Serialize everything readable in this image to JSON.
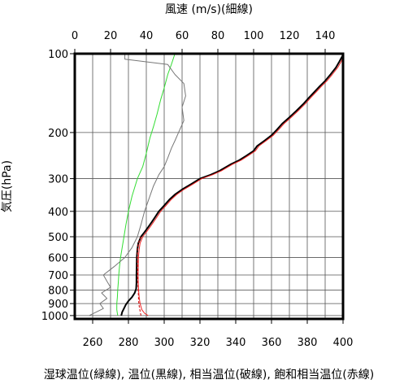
{
  "chart_data": {
    "type": "line",
    "title": "",
    "top_axis_label": "風速 (m/s)(細線)",
    "left_axis_label": "気圧(hPa)",
    "bottom_axis_label": "湿球温位(緑線), 温位(黒線), 相当温位(破線), 飽和相当温位(赤線)",
    "x_bottom": {
      "min": 250,
      "max": 400,
      "ticks": [
        260,
        280,
        300,
        320,
        340,
        360,
        380,
        400
      ]
    },
    "x_top": {
      "min": 0,
      "max": 150,
      "ticks": [
        0,
        20,
        40,
        60,
        80,
        100,
        120,
        140
      ]
    },
    "y": {
      "scale": "log",
      "min": 100,
      "max": 1030,
      "ticks": [
        100,
        200,
        300,
        400,
        500,
        600,
        700,
        800,
        900,
        1000
      ]
    },
    "grid": true,
    "series": [
      {
        "name": "湿球温位",
        "axis": "bottom",
        "color": "#33dd33",
        "points": [
          [
            274,
            1000
          ],
          [
            273.5,
            950
          ],
          [
            273.5,
            900
          ],
          [
            273.8,
            850
          ],
          [
            274,
            800
          ],
          [
            274.3,
            750
          ],
          [
            274.6,
            700
          ],
          [
            275,
            650
          ],
          [
            275.6,
            600
          ],
          [
            276.5,
            550
          ],
          [
            277.5,
            500
          ],
          [
            278.6,
            450
          ],
          [
            280,
            400
          ],
          [
            282,
            350
          ],
          [
            285,
            300
          ],
          [
            288,
            270
          ],
          [
            290,
            240
          ],
          [
            292,
            210
          ],
          [
            294,
            190
          ],
          [
            296,
            170
          ],
          [
            298,
            150
          ],
          [
            300,
            135
          ],
          [
            302,
            120
          ],
          [
            304,
            110
          ],
          [
            306,
            100
          ]
        ]
      },
      {
        "name": "温位",
        "axis": "bottom",
        "color": "#000000",
        "points": [
          [
            276,
            1000
          ],
          [
            276.5,
            970
          ],
          [
            277.5,
            940
          ],
          [
            278.5,
            910
          ],
          [
            280,
            880
          ],
          [
            282,
            850
          ],
          [
            283.5,
            820
          ],
          [
            284.3,
            790
          ],
          [
            284.5,
            750
          ],
          [
            284.5,
            700
          ],
          [
            284.6,
            650
          ],
          [
            284.7,
            600
          ],
          [
            285,
            560
          ],
          [
            285.5,
            530
          ],
          [
            287,
            500
          ],
          [
            289,
            480
          ],
          [
            291,
            460
          ],
          [
            293,
            440
          ],
          [
            295,
            420
          ],
          [
            297,
            400
          ],
          [
            300,
            380
          ],
          [
            303,
            360
          ],
          [
            306,
            345
          ],
          [
            310,
            330
          ],
          [
            315,
            315
          ],
          [
            320,
            300
          ],
          [
            326,
            290
          ],
          [
            331,
            280
          ],
          [
            337,
            265
          ],
          [
            342,
            255
          ],
          [
            346,
            245
          ],
          [
            350,
            235
          ],
          [
            352,
            225
          ],
          [
            356,
            215
          ],
          [
            360,
            205
          ],
          [
            363,
            195
          ],
          [
            366,
            185
          ],
          [
            370,
            175
          ],
          [
            374,
            165
          ],
          [
            378,
            155
          ],
          [
            381,
            147
          ],
          [
            384,
            140
          ],
          [
            387,
            133
          ],
          [
            390,
            127
          ],
          [
            393,
            120
          ],
          [
            396,
            113
          ],
          [
            398,
            107
          ],
          [
            400,
            101
          ]
        ]
      },
      {
        "name": "相当温位",
        "axis": "bottom",
        "color": "#cc0000",
        "dashed": true,
        "points": [
          [
            287,
            1000
          ],
          [
            286.5,
            960
          ],
          [
            286,
            920
          ],
          [
            285.7,
            880
          ],
          [
            285.6,
            840
          ],
          [
            285.4,
            800
          ],
          [
            285.3,
            760
          ],
          [
            285.2,
            720
          ],
          [
            285.1,
            680
          ],
          [
            285,
            640
          ],
          [
            285,
            600
          ],
          [
            285.1,
            560
          ],
          [
            285.5,
            530
          ],
          [
            287,
            500
          ]
        ]
      },
      {
        "name": "飽和相当温位",
        "axis": "bottom",
        "color": "#ee2222",
        "points": [
          [
            291,
            1000
          ],
          [
            289,
            980
          ],
          [
            287.5,
            950
          ],
          [
            286.5,
            900
          ],
          [
            286,
            850
          ],
          [
            285.7,
            800
          ],
          [
            285.5,
            750
          ],
          [
            285.4,
            700
          ],
          [
            285.5,
            650
          ],
          [
            285.6,
            600
          ],
          [
            286,
            560
          ],
          [
            286.5,
            530
          ],
          [
            288,
            500
          ],
          [
            290,
            480
          ],
          [
            292,
            460
          ],
          [
            294,
            440
          ],
          [
            296,
            420
          ],
          [
            298,
            400
          ],
          [
            301,
            380
          ],
          [
            304,
            360
          ],
          [
            307,
            345
          ],
          [
            311,
            330
          ],
          [
            316,
            315
          ],
          [
            321,
            300
          ],
          [
            327,
            290
          ],
          [
            332,
            280
          ],
          [
            338,
            265
          ],
          [
            343,
            255
          ],
          [
            347,
            245
          ],
          [
            351,
            235
          ],
          [
            353,
            225
          ],
          [
            357,
            215
          ],
          [
            361,
            205
          ],
          [
            364,
            195
          ],
          [
            367,
            185
          ],
          [
            371,
            175
          ],
          [
            375,
            165
          ],
          [
            379,
            155
          ],
          [
            382,
            147
          ],
          [
            385,
            140
          ],
          [
            388,
            133
          ],
          [
            391,
            127
          ],
          [
            394,
            120
          ],
          [
            397,
            113
          ],
          [
            399,
            107
          ],
          [
            400,
            103
          ]
        ]
      },
      {
        "name": "風速",
        "axis": "top",
        "color": "#777777",
        "points": [
          [
            8,
            1000
          ],
          [
            12,
            970
          ],
          [
            16,
            940
          ],
          [
            14,
            900
          ],
          [
            18,
            860
          ],
          [
            15,
            820
          ],
          [
            20,
            780
          ],
          [
            18,
            740
          ],
          [
            16,
            700
          ],
          [
            22,
            650
          ],
          [
            28,
            600
          ],
          [
            32,
            550
          ],
          [
            35,
            500
          ],
          [
            37,
            450
          ],
          [
            39,
            400
          ],
          [
            42,
            350
          ],
          [
            44,
            320
          ],
          [
            47,
            290
          ],
          [
            50,
            270
          ],
          [
            52,
            250
          ],
          [
            54,
            230
          ],
          [
            56,
            215
          ],
          [
            58,
            200
          ],
          [
            61,
            180
          ],
          [
            60,
            160
          ],
          [
            62,
            145
          ],
          [
            61,
            130
          ],
          [
            56,
            120
          ],
          [
            52,
            110
          ],
          [
            28,
            105
          ],
          [
            28,
            100
          ]
        ]
      }
    ]
  }
}
